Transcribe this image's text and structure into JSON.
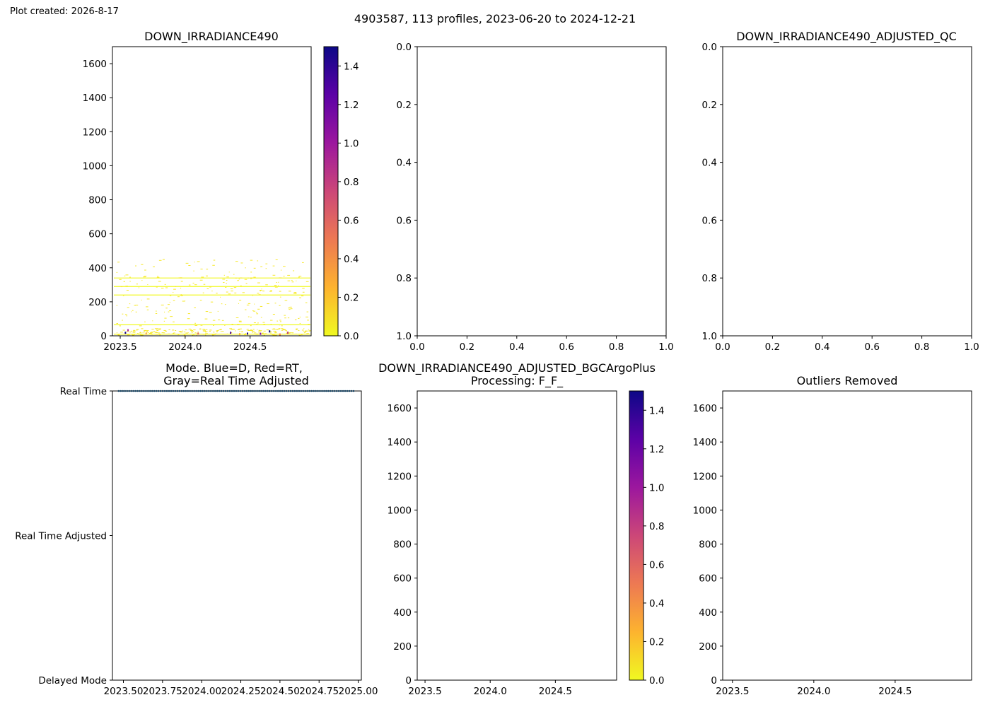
{
  "header": {
    "created": "Plot created: 2026-8-17",
    "suptitle": "4903587, 113 profiles, 2023-06-20 to 2024-12-21"
  },
  "colors": {
    "cmap_stops": [
      "#f0f921",
      "#fdb32f",
      "#ed7953",
      "#cc4778",
      "#9c179e",
      "#5c01a6",
      "#0d0887"
    ],
    "mode_points": "#1f77b4",
    "raw_data": "#f7e82a"
  },
  "chart_data": [
    {
      "id": "raw",
      "type": "heatmap",
      "title": "DOWN_IRRADIANCE490",
      "xlim": [
        2023.44,
        2024.97
      ],
      "ylim": [
        1700,
        0
      ],
      "xticks": [
        2023.5,
        2024.0,
        2024.5
      ],
      "xtick_labels": [
        "2023.5",
        "2024.0",
        "2024.5"
      ],
      "yticks": [
        0,
        200,
        400,
        600,
        800,
        1000,
        1200,
        1400,
        1600
      ],
      "ytick_labels": [
        "0",
        "200",
        "400",
        "600",
        "800",
        "1000",
        "1200",
        "1400",
        "1600"
      ],
      "colorbar": {
        "range": [
          0,
          1.5
        ],
        "ticks": [
          0.0,
          0.2,
          0.4,
          0.6,
          0.8,
          1.0,
          1.2,
          1.4
        ],
        "tick_labels": [
          "0.0",
          "0.2",
          "0.4",
          "0.6",
          "0.8",
          "1.0",
          "1.2",
          "1.4"
        ]
      },
      "continuous_lines": [
        {
          "depth": 10,
          "value": 0.02
        },
        {
          "depth": 65,
          "value": 0.0
        },
        {
          "depth": 240,
          "value": 0.0
        },
        {
          "depth": 290,
          "value": 0.0
        },
        {
          "depth": 340,
          "value": 0.0
        }
      ],
      "spots": [
        {
          "x": 2023.54,
          "depth": 20,
          "value": 1.45
        },
        {
          "x": 2023.56,
          "depth": 35,
          "value": 0.9
        },
        {
          "x": 2023.7,
          "depth": 15,
          "value": 0.3
        },
        {
          "x": 2024.1,
          "depth": 15,
          "value": 0.55
        },
        {
          "x": 2024.35,
          "depth": 20,
          "value": 1.3
        },
        {
          "x": 2024.42,
          "depth": 12,
          "value": 0.2
        },
        {
          "x": 2024.48,
          "depth": 15,
          "value": 1.45
        },
        {
          "x": 2024.58,
          "depth": 14,
          "value": 1.1
        },
        {
          "x": 2024.65,
          "depth": 28,
          "value": 1.5
        },
        {
          "x": 2024.73,
          "depth": 10,
          "value": 0.4
        },
        {
          "x": 2024.79,
          "depth": 20,
          "value": 0.8
        }
      ]
    },
    {
      "id": "adj",
      "type": "heatmap",
      "title": "",
      "xlim": [
        0,
        1
      ],
      "ylim": [
        0,
        1
      ],
      "xticks": [
        0.0,
        0.2,
        0.4,
        0.6,
        0.8,
        1.0
      ],
      "xtick_labels": [
        "0.0",
        "0.2",
        "0.4",
        "0.6",
        "0.8",
        "1.0"
      ],
      "yticks": [
        0.0,
        0.2,
        0.4,
        0.6,
        0.8,
        1.0
      ],
      "ytick_labels": [
        "0.0",
        "0.2",
        "0.4",
        "0.6",
        "0.8",
        "1.0"
      ]
    },
    {
      "id": "qc",
      "type": "heatmap",
      "title": "DOWN_IRRADIANCE490_ADJUSTED_QC",
      "xlim": [
        0,
        1
      ],
      "ylim": [
        0,
        1
      ],
      "xticks": [
        0.0,
        0.2,
        0.4,
        0.6,
        0.8,
        1.0
      ],
      "xtick_labels": [
        "0.0",
        "0.2",
        "0.4",
        "0.6",
        "0.8",
        "1.0"
      ],
      "yticks": [
        0.0,
        0.2,
        0.4,
        0.6,
        0.8,
        1.0
      ],
      "ytick_labels": [
        "0.0",
        "0.2",
        "0.4",
        "0.6",
        "0.8",
        "1.0"
      ]
    },
    {
      "id": "mode",
      "type": "scatter",
      "title": [
        "Mode. Blue=D, Red=RT,",
        "Gray=Real Time Adjusted"
      ],
      "xlim": [
        2023.43,
        2025.02
      ],
      "ylim": [
        0,
        2
      ],
      "xticks": [
        2023.5,
        2023.75,
        2024.0,
        2024.25,
        2024.5,
        2024.75,
        2025.0
      ],
      "xtick_labels": [
        "2023.50",
        "2023.75",
        "2024.00",
        "2024.25",
        "2024.50",
        "2024.75",
        "2025.00"
      ],
      "yticks": [
        0,
        1,
        2
      ],
      "ytick_labels": [
        "Real Time",
        "Real Time Adjusted",
        "Delayed Mode"
      ],
      "series": {
        "x_start": 2023.47,
        "x_end": 2024.97,
        "count": 113,
        "y": 0
      }
    },
    {
      "id": "bgc",
      "type": "heatmap",
      "title": [
        "DOWN_IRRADIANCE490_ADJUSTED_BGCArgoPlus",
        "Processing: F_F_"
      ],
      "xlim": [
        2023.44,
        2024.97
      ],
      "ylim": [
        1700,
        0
      ],
      "xticks": [
        2023.5,
        2024.0,
        2024.5
      ],
      "xtick_labels": [
        "2023.5",
        "2024.0",
        "2024.5"
      ],
      "yticks": [
        0,
        200,
        400,
        600,
        800,
        1000,
        1200,
        1400,
        1600
      ],
      "ytick_labels": [
        "0",
        "200",
        "400",
        "600",
        "800",
        "1000",
        "1200",
        "1400",
        "1600"
      ],
      "colorbar": {
        "range": [
          0,
          1.5
        ],
        "ticks": [
          0.0,
          0.2,
          0.4,
          0.6,
          0.8,
          1.0,
          1.2,
          1.4
        ],
        "tick_labels": [
          "0.0",
          "0.2",
          "0.4",
          "0.6",
          "0.8",
          "1.0",
          "1.2",
          "1.4"
        ]
      }
    },
    {
      "id": "outliers",
      "type": "heatmap",
      "title": "Outliers Removed",
      "xlim": [
        2023.44,
        2024.97
      ],
      "ylim": [
        1700,
        0
      ],
      "xticks": [
        2023.5,
        2024.0,
        2024.5
      ],
      "xtick_labels": [
        "2023.5",
        "2024.0",
        "2024.5"
      ],
      "yticks": [
        0,
        200,
        400,
        600,
        800,
        1000,
        1200,
        1400,
        1600
      ],
      "ytick_labels": [
        "0",
        "200",
        "400",
        "600",
        "800",
        "1000",
        "1200",
        "1400",
        "1600"
      ]
    }
  ]
}
